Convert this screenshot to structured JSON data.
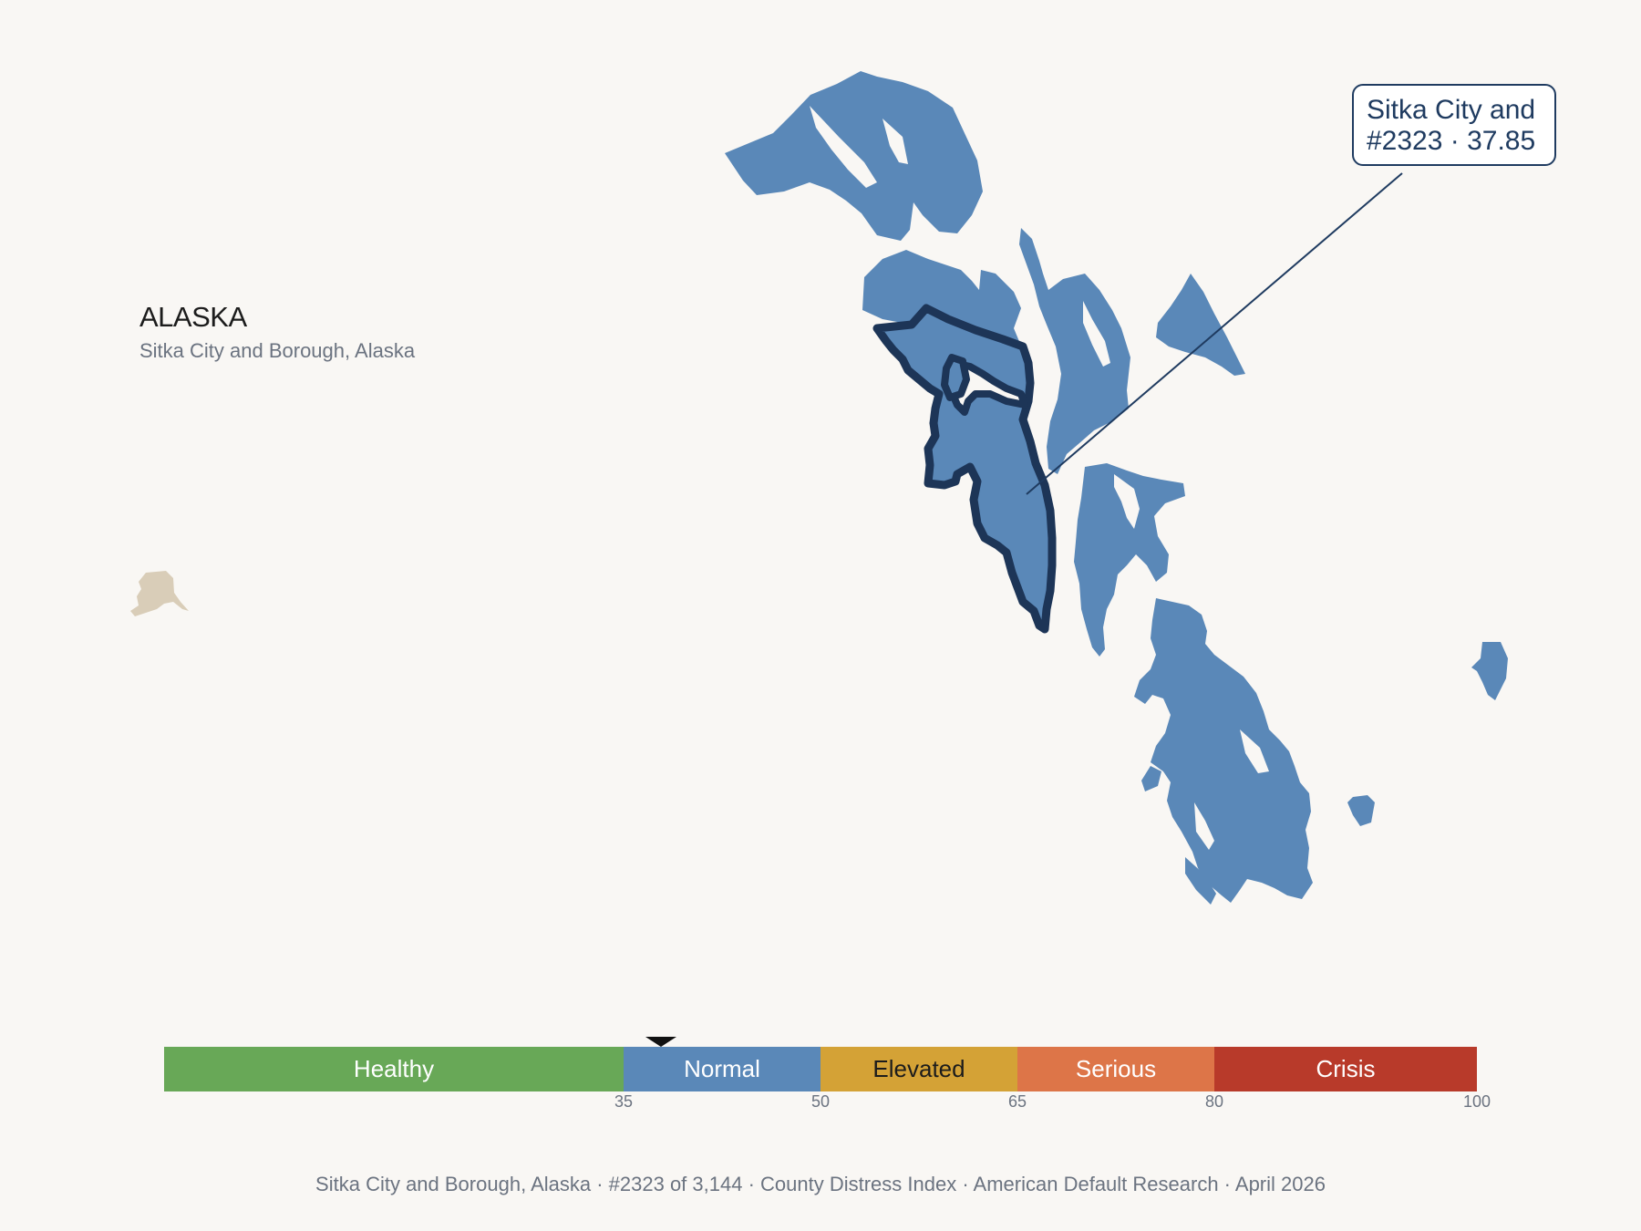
{
  "header": {
    "state": "ALASKA",
    "county": "Sitka City and Borough, Alaska"
  },
  "callout": {
    "line1": "Sitka City and",
    "line2": "#2323 · 37.85"
  },
  "colors": {
    "background": "#f9f7f4",
    "county_fill": "#5a88b8",
    "highlight_outline": "#1d3557",
    "callout_border": "#1f3b60",
    "inset_state": "#d9cdb8"
  },
  "scale": {
    "segments": [
      {
        "label": "Healthy",
        "from": 0,
        "to": 35,
        "color": "#68a857"
      },
      {
        "label": "Normal",
        "from": 35,
        "to": 50,
        "color": "#5a88b8"
      },
      {
        "label": "Elevated",
        "from": 50,
        "to": 65,
        "color": "#d4a236"
      },
      {
        "label": "Serious",
        "from": 65,
        "to": 80,
        "color": "#dd7548"
      },
      {
        "label": "Crisis",
        "from": 80,
        "to": 100,
        "color": "#b83a2a"
      }
    ],
    "ticks": [
      "35",
      "50",
      "65",
      "80",
      "100"
    ],
    "marker_value": 37.85
  },
  "footer": {
    "text": "Sitka City and Borough, Alaska  ·  #2323 of 3,144  ·  County Distress Index  ·  American Default Research  ·  April 2026"
  }
}
